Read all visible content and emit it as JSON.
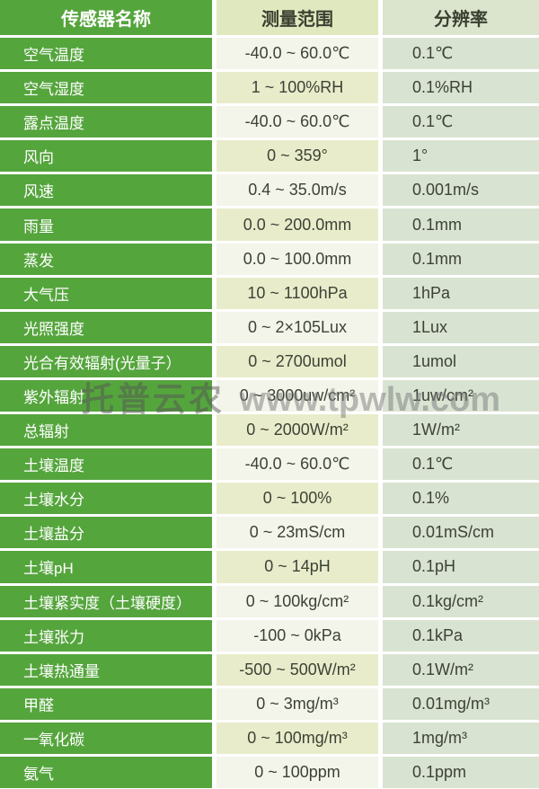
{
  "table": {
    "headers": [
      {
        "label": "传感器名称"
      },
      {
        "label": "测量范围"
      },
      {
        "label": "分辨率"
      }
    ],
    "rows": [
      {
        "name": "空气温度",
        "range": "-40.0 ~ 60.0℃",
        "resolution": "0.1℃",
        "range_tone": "light"
      },
      {
        "name": "空气湿度",
        "range": "1 ~ 100%RH",
        "resolution": "0.1%RH",
        "range_tone": "tint"
      },
      {
        "name": "露点温度",
        "range": "-40.0 ~ 60.0℃",
        "resolution": "0.1℃",
        "range_tone": "light"
      },
      {
        "name": "风向",
        "range": "0 ~ 359°",
        "resolution": "1°",
        "range_tone": "tint"
      },
      {
        "name": "风速",
        "range": "0.4 ~ 35.0m/s",
        "resolution": "0.001m/s",
        "range_tone": "light"
      },
      {
        "name": "雨量",
        "range": "0.0 ~ 200.0mm",
        "resolution": "0.1mm",
        "range_tone": "tint"
      },
      {
        "name": "蒸发",
        "range": "0.0 ~ 100.0mm",
        "resolution": "0.1mm",
        "range_tone": "light"
      },
      {
        "name": "大气压",
        "range": "10 ~ 1100hPa",
        "resolution": "1hPa",
        "range_tone": "tint"
      },
      {
        "name": "光照强度",
        "range": "0 ~ 2×105Lux",
        "resolution": "1Lux",
        "range_tone": "light"
      },
      {
        "name": "光合有效辐射(光量子）",
        "range": "0 ~ 2700umol",
        "resolution": "1umol",
        "range_tone": "tint"
      },
      {
        "name": "紫外辐射",
        "range": "0 ~ 3000uw/cm²",
        "resolution": "1uw/cm²",
        "range_tone": "light"
      },
      {
        "name": "总辐射",
        "range": "0 ~ 2000W/m²",
        "resolution": "1W/m²",
        "range_tone": "tint"
      },
      {
        "name": "土壤温度",
        "range": "-40.0 ~ 60.0℃",
        "resolution": "0.1℃",
        "range_tone": "light"
      },
      {
        "name": "土壤水分",
        "range": "0 ~ 100%",
        "resolution": "0.1%",
        "range_tone": "tint"
      },
      {
        "name": "土壤盐分",
        "range": "0 ~ 23mS/cm",
        "resolution": "0.01mS/cm",
        "range_tone": "light"
      },
      {
        "name": "土壤pH",
        "range": "0 ~ 14pH",
        "resolution": "0.1pH",
        "range_tone": "tint"
      },
      {
        "name": "土壤紧实度（土壤硬度）",
        "range": "0 ~ 100kg/cm²",
        "resolution": "0.1kg/cm²",
        "range_tone": "light"
      },
      {
        "name": "土壤张力",
        "range": "-100 ~ 0kPa",
        "resolution": "0.1kPa",
        "range_tone": "light"
      },
      {
        "name": "土壤热通量",
        "range": "-500 ~ 500W/m²",
        "resolution": "0.1W/m²",
        "range_tone": "tint"
      },
      {
        "name": "甲醛",
        "range": "0 ~ 3mg/m³",
        "resolution": "0.01mg/m³",
        "range_tone": "light"
      },
      {
        "name": "一氧化碳",
        "range": "0 ~ 100mg/m³",
        "resolution": "1mg/m³",
        "range_tone": "tint"
      },
      {
        "name": "氨气",
        "range": "0 ~ 100ppm",
        "resolution": "0.1ppm",
        "range_tone": "light"
      }
    ]
  },
  "watermark": {
    "brand": "托普云农",
    "url": "www.tpwlw.com"
  },
  "colors": {
    "sensor_column_green": "#55a53d",
    "header_range_bg": "#e0e8bf",
    "header_resolution_bg": "#dbe4cd",
    "range_cell_light": "#f3f5ea",
    "range_cell_tint": "#e9ecca",
    "resolution_cell_bg": "#d9e3d2",
    "separator": "#ffffff",
    "body_text": "#3c4236",
    "sensor_text": "#ffffff"
  }
}
